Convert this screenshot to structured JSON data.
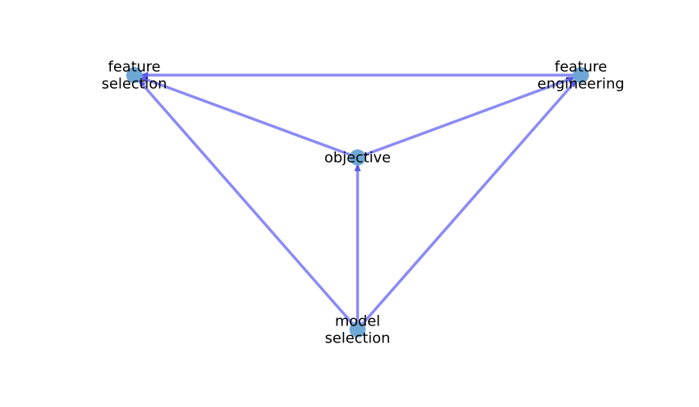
{
  "graph": {
    "colors": {
      "edge": "#8b8bf5",
      "node": "#6fa8d6",
      "arrow": "#5a5ae8"
    },
    "nodes": [
      {
        "id": "feature_selection",
        "label_lines": [
          "feature",
          "selection"
        ]
      },
      {
        "id": "feature_engineering",
        "label_lines": [
          "feature",
          "engineering"
        ]
      },
      {
        "id": "objective",
        "label_lines": [
          "objective"
        ]
      },
      {
        "id": "model_selection",
        "label_lines": [
          "model",
          "selection"
        ]
      }
    ],
    "edges": [
      {
        "from": "feature_engineering",
        "to": "feature_selection"
      },
      {
        "from": "objective",
        "to": "feature_selection"
      },
      {
        "from": "objective",
        "to": "feature_engineering"
      },
      {
        "from": "model_selection",
        "to": "feature_selection"
      },
      {
        "from": "model_selection",
        "to": "feature_engineering"
      },
      {
        "from": "model_selection",
        "to": "objective"
      }
    ]
  }
}
